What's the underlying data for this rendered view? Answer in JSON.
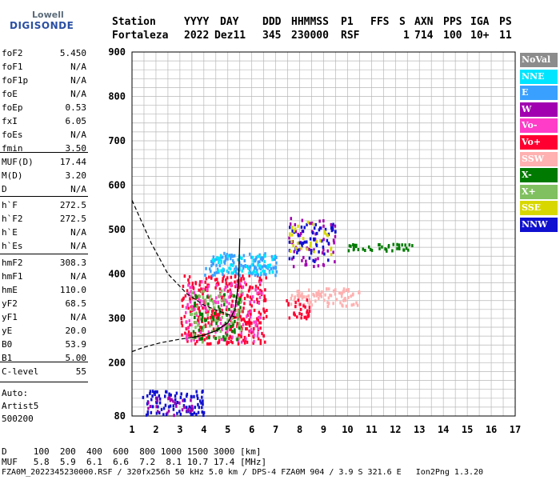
{
  "logo": {
    "line1": "Lowell",
    "line2": "DIGISONDE"
  },
  "header": {
    "labels": [
      "Station",
      "YYYY",
      "DAY",
      "DDD",
      "HHMMSS",
      "P1",
      "FFS",
      "S",
      "AXN",
      "PPS",
      "IGA",
      "PS"
    ],
    "values": [
      "Fortaleza",
      "2022",
      "Dez11",
      "345",
      "230000",
      "RSF",
      "",
      "1",
      "714",
      "100",
      "10+",
      "11"
    ]
  },
  "params": {
    "group1": [
      {
        "name": "foF2",
        "value": "5.450"
      },
      {
        "name": "foF1",
        "value": "N/A"
      },
      {
        "name": "foF1p",
        "value": "N/A"
      },
      {
        "name": "foE",
        "value": "N/A"
      },
      {
        "name": "foEp",
        "value": "0.53"
      },
      {
        "name": "fxI",
        "value": "6.05"
      },
      {
        "name": "foEs",
        "value": "N/A"
      },
      {
        "name": "fmin",
        "value": "3.50"
      }
    ],
    "group2": [
      {
        "name": "MUF(D)",
        "value": "17.44"
      },
      {
        "name": "M(D)",
        "value": "3.20"
      },
      {
        "name": "D",
        "value": "N/A"
      }
    ],
    "group3": [
      {
        "name": "h`F",
        "value": "272.5"
      },
      {
        "name": "h`F2",
        "value": "272.5"
      },
      {
        "name": "h`E",
        "value": "N/A"
      },
      {
        "name": "h`Es",
        "value": "N/A"
      }
    ],
    "group4": [
      {
        "name": "hmF2",
        "value": "308.3"
      },
      {
        "name": "hmF1",
        "value": "N/A"
      },
      {
        "name": "hmE",
        "value": "110.0"
      },
      {
        "name": "yF2",
        "value": "68.5"
      },
      {
        "name": "yF1",
        "value": "N/A"
      },
      {
        "name": "yE",
        "value": "20.0"
      },
      {
        "name": "B0",
        "value": "53.9"
      },
      {
        "name": "B1",
        "value": "5.00"
      }
    ],
    "group5": [
      {
        "name": "C-level",
        "value": "55"
      }
    ]
  },
  "auto": {
    "line1": "Auto:",
    "line2": "Artist5",
    "line3": "500200"
  },
  "legend": [
    {
      "label": "NoVal",
      "color": "#8c8c8c"
    },
    {
      "label": "NNE",
      "color": "#00e5ff"
    },
    {
      "label": "E",
      "color": "#3aa0ff"
    },
    {
      "label": "W",
      "color": "#a000b0"
    },
    {
      "label": "Vo-",
      "color": "#ff3cc8"
    },
    {
      "label": "Vo+",
      "color": "#ff0030"
    },
    {
      "label": "SSW",
      "color": "#ffb0b0"
    },
    {
      "label": "X-",
      "color": "#007a00"
    },
    {
      "label": "X+",
      "color": "#80c060"
    },
    {
      "label": "SSE",
      "color": "#d8d800"
    },
    {
      "label": "NNW",
      "color": "#1010d0"
    }
  ],
  "footer": {
    "d_label": "D",
    "d_values": "100  200  400  600  800 1000 1500 3000 [km]",
    "muf_label": "MUF",
    "muf_values": "5.8  5.9  6.1  6.6  7.2  8.1 10.7 17.4 [MHz]",
    "info": "FZA0M_2022345230000.RSF / 320fx256h 50 kHz 5.0 km / DPS-4 FZA0M 904 / 3.9 S 321.6 E   Ion2Png 1.3.20"
  },
  "chart_data": {
    "type": "scatter",
    "title": "",
    "xlabel": "",
    "ylabel": "",
    "xlim": [
      1,
      17
    ],
    "ylim": [
      80,
      900
    ],
    "x_ticks": [
      1,
      2,
      3,
      4,
      5,
      6,
      7,
      8,
      9,
      10,
      11,
      12,
      13,
      14,
      15,
      16,
      17
    ],
    "y_ticks": [
      80,
      200,
      300,
      400,
      500,
      600,
      700,
      800,
      900
    ],
    "grid": true,
    "legend_position": "right",
    "clusters": [
      {
        "name": "Vo+",
        "x_range": [
          3.0,
          6.6
        ],
        "y_range": [
          245,
          400
        ],
        "count": 340
      },
      {
        "name": "Vo-",
        "x_range": [
          3.2,
          6.4
        ],
        "y_range": [
          250,
          390
        ],
        "count": 150
      },
      {
        "name": "X+",
        "x_range": [
          3.4,
          5.6
        ],
        "y_range": [
          250,
          370
        ],
        "count": 90
      },
      {
        "name": "X-",
        "x_range": [
          3.5,
          5.6
        ],
        "y_range": [
          255,
          360
        ],
        "count": 60
      },
      {
        "name": "E",
        "x_range": [
          4.0,
          7.0
        ],
        "y_range": [
          400,
          450
        ],
        "count": 130
      },
      {
        "name": "NNE",
        "x_range": [
          4.2,
          7.0
        ],
        "y_range": [
          405,
          445
        ],
        "count": 60
      },
      {
        "name": "W",
        "x_range": [
          7.5,
          9.5
        ],
        "y_range": [
          420,
          530
        ],
        "count": 60
      },
      {
        "name": "NNW",
        "x_range": [
          7.5,
          9.5
        ],
        "y_range": [
          430,
          520
        ],
        "count": 55
      },
      {
        "name": "SSE",
        "x_range": [
          7.5,
          9.3
        ],
        "y_range": [
          440,
          520
        ],
        "count": 30
      },
      {
        "name": "SSW",
        "x_range": [
          7.6,
          10.5
        ],
        "y_range": [
          330,
          370
        ],
        "count": 90
      },
      {
        "name": "X-",
        "x_range": [
          10.0,
          12.8
        ],
        "y_range": [
          455,
          470
        ],
        "count": 40
      },
      {
        "name": "NNW",
        "x_range": [
          1.4,
          4.0
        ],
        "y_range": [
          85,
          140
        ],
        "count": 90
      },
      {
        "name": "W",
        "x_range": [
          1.5,
          3.5
        ],
        "y_range": [
          85,
          125
        ],
        "count": 30
      },
      {
        "name": "Vo+",
        "x_range": [
          7.4,
          8.4
        ],
        "y_range": [
          300,
          350
        ],
        "count": 30
      }
    ],
    "curves": {
      "dashed_profile": [
        [
          1.0,
          566
        ],
        [
          1.3,
          530
        ],
        [
          1.8,
          470
        ],
        [
          2.5,
          400
        ],
        [
          3.3,
          355
        ],
        [
          4.0,
          330
        ],
        [
          4.6,
          317
        ],
        [
          5.2,
          305
        ],
        [
          5.45,
          300
        ]
      ],
      "dashed_lower": [
        [
          1.0,
          225
        ],
        [
          1.5,
          235
        ],
        [
          2.2,
          245
        ],
        [
          3.0,
          253
        ],
        [
          3.5,
          257
        ]
      ],
      "trace": [
        [
          3.5,
          257
        ],
        [
          4.0,
          262
        ],
        [
          4.5,
          272
        ],
        [
          5.0,
          290
        ],
        [
          5.3,
          320
        ],
        [
          5.45,
          380
        ],
        [
          5.5,
          480
        ]
      ]
    }
  }
}
